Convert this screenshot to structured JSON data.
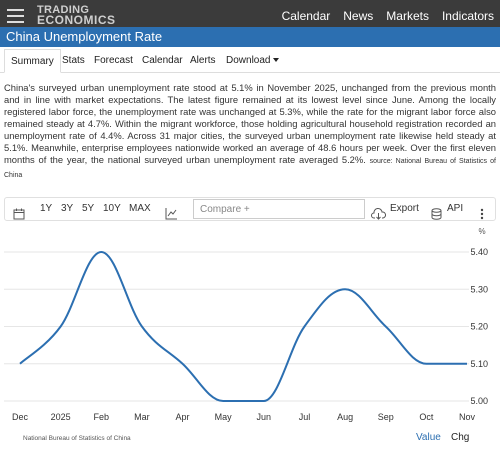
{
  "header": {
    "logo_line1": "TRADING",
    "logo_line2": "ECONOMICS",
    "nav": [
      "Calendar",
      "News",
      "Markets",
      "Indicators"
    ]
  },
  "page": {
    "title": "China Unemployment Rate"
  },
  "tabs": [
    "Summary",
    "Stats",
    "Forecast",
    "Calendar",
    "Alerts",
    "Download"
  ],
  "summary": {
    "text": "China's surveyed urban unemployment rate stood at 5.1% in November 2025, unchanged from the previous month and in line with market expectations. The latest figure remained at its lowest level since June. Among the locally registered labor force, the unemployment rate was unchanged at 5.3%, while the rate for the migrant labor force also remained steady at 4.7%. Within the migrant workforce, those holding agricultural household registration recorded an unemployment rate of 4.4%. Across 31 major cities, the surveyed urban unemployment rate likewise held steady at 5.1%. Meanwhile, enterprise employees nationwide worked an average of 48.6 hours per week. Over the first eleven months of the year, the national surveyed urban unemployment rate averaged 5.2%.",
    "source": "source: National Bureau of Statistics of China"
  },
  "toolbar": {
    "ranges": [
      "1Y",
      "3Y",
      "5Y",
      "10Y",
      "MAX"
    ],
    "compare_placeholder": "Compare +",
    "export_label": "Export",
    "api_label": "API"
  },
  "chart_data": {
    "type": "line",
    "x": [
      "Dec",
      "2025",
      "Feb",
      "Mar",
      "Apr",
      "May",
      "Jun",
      "Jul",
      "Aug",
      "Sep",
      "Oct",
      "Nov"
    ],
    "series": [
      {
        "values": [
          5.1,
          5.2,
          5.4,
          5.2,
          5.1,
          5.0,
          5.0,
          5.2,
          5.3,
          5.2,
          5.1,
          5.1
        ]
      }
    ],
    "ylim": [
      5.0,
      5.4
    ],
    "yticks": [
      "5.40",
      "5.30",
      "5.20",
      "5.10",
      "5.00"
    ],
    "unit_label": "%",
    "grid": "horizontal",
    "color": "#2c6fb1"
  },
  "footer": {
    "source": "National Bureau of Statistics of China",
    "value_label": "Value",
    "chg_label": "Chg"
  }
}
